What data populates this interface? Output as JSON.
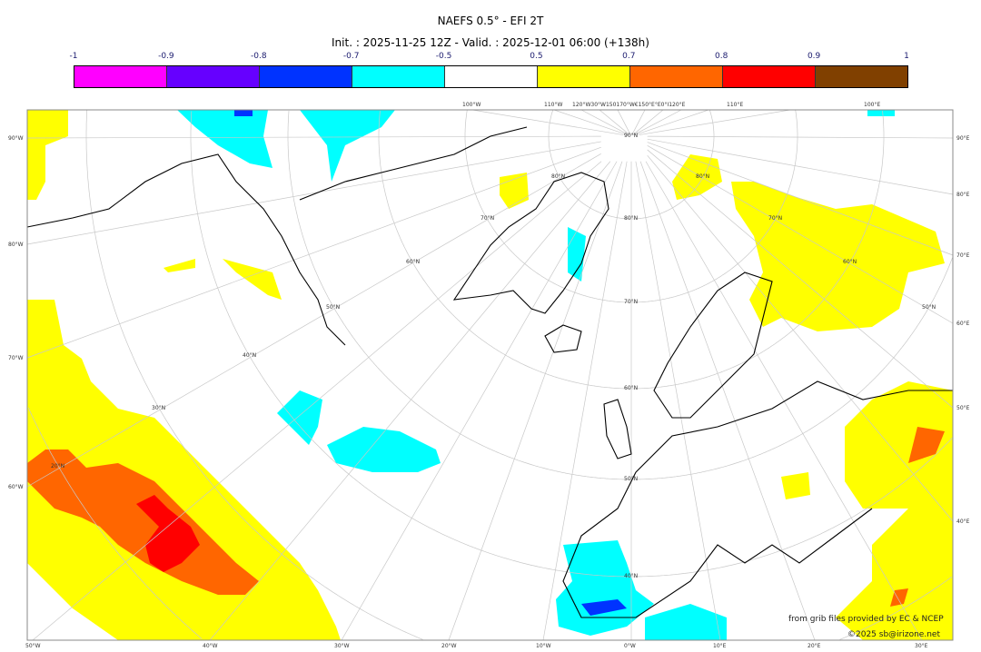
{
  "title": "NAEFS 0.5° - EFI 2T",
  "subtitle": "Init. : 2025-11-25 12Z - Valid. : 2025-12-01 06:00 (+138h)",
  "colorbar": {
    "labels": [
      "-1",
      "-0.9",
      "-0.8",
      "-0.7",
      "-0.5",
      "0.5",
      "0.7",
      "0.8",
      "0.9",
      "1"
    ],
    "colors": [
      "#ff00ff",
      "#6600ff",
      "#0033ff",
      "#00ffff",
      "#ffffff",
      "#ffff00",
      "#ff6600",
      "#ff0000",
      "#804000"
    ]
  },
  "axes": {
    "bottom": [
      "50°W",
      "40°W",
      "30°W",
      "20°W",
      "10°W",
      "0°W",
      "10°E",
      "20°E",
      "30°E"
    ],
    "left": [
      "90°W",
      "80°W",
      "70°W",
      "60°W"
    ],
    "right": [
      "90°E",
      "80°E",
      "70°E",
      "60°E",
      "50°E",
      "40°E"
    ],
    "top": [
      "100°W",
      "110°W",
      "120°W30°W150170°W€150°E°E0°I120°E",
      "110°E",
      "100°E"
    ],
    "parallels": [
      "90°N",
      "80°N",
      "80°N",
      "80°N",
      "70°N",
      "70°N",
      "70°N",
      "60°N",
      "60°N",
      "60°N",
      "50°N",
      "50°N",
      "50°N",
      "40°N",
      "40°N",
      "30°N",
      "20°N"
    ]
  },
  "credits": {
    "source": "from grib files provided by EC & NCEP",
    "copyright": "©2025 sb@irizone.net"
  }
}
